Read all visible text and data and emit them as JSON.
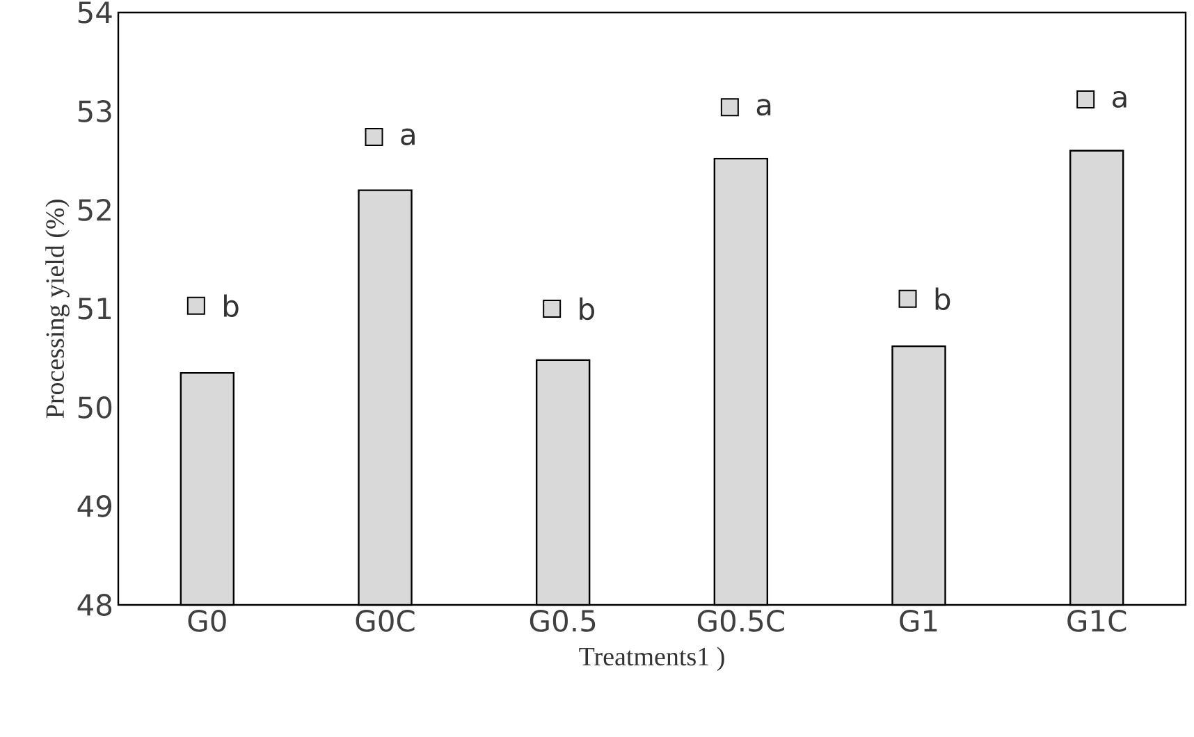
{
  "chart_data": {
    "type": "bar",
    "xlabel": "Treatments1 )",
    "ylabel": "Processing yield (%)",
    "categories": [
      "G0",
      "G0C",
      "G0.5",
      "G0.5C",
      "G1",
      "G1C"
    ],
    "series": [
      {
        "color": "#d9d9d9",
        "values": [
          50.35,
          52.2,
          50.48,
          52.52,
          50.62,
          52.6
        ]
      },
      {
        "type": "scatter",
        "marker": "square",
        "color": "#d9d9d9",
        "x": [
          "G0",
          "G0C",
          "G0.5",
          "G0.5C",
          "G1",
          "G1C"
        ],
        "values": [
          51.03,
          52.74,
          51.0,
          53.04,
          51.1,
          53.12
        ]
      }
    ],
    "ylim": [
      48,
      54
    ],
    "yticks": [
      48,
      49,
      50,
      51,
      52,
      53,
      54
    ],
    "grid": false,
    "annotations": [
      {
        "text": "b",
        "x": "G0",
        "y": 51.03
      },
      {
        "text": "a",
        "x": "G0C",
        "y": 52.74
      },
      {
        "text": "b",
        "x": "G0.5",
        "y": 51.0
      },
      {
        "text": "a",
        "x": "G0.5C",
        "y": 53.04
      },
      {
        "text": "b",
        "x": "G1",
        "y": 51.1
      },
      {
        "text": "a",
        "x": "G1C",
        "y": 53.12
      }
    ]
  }
}
